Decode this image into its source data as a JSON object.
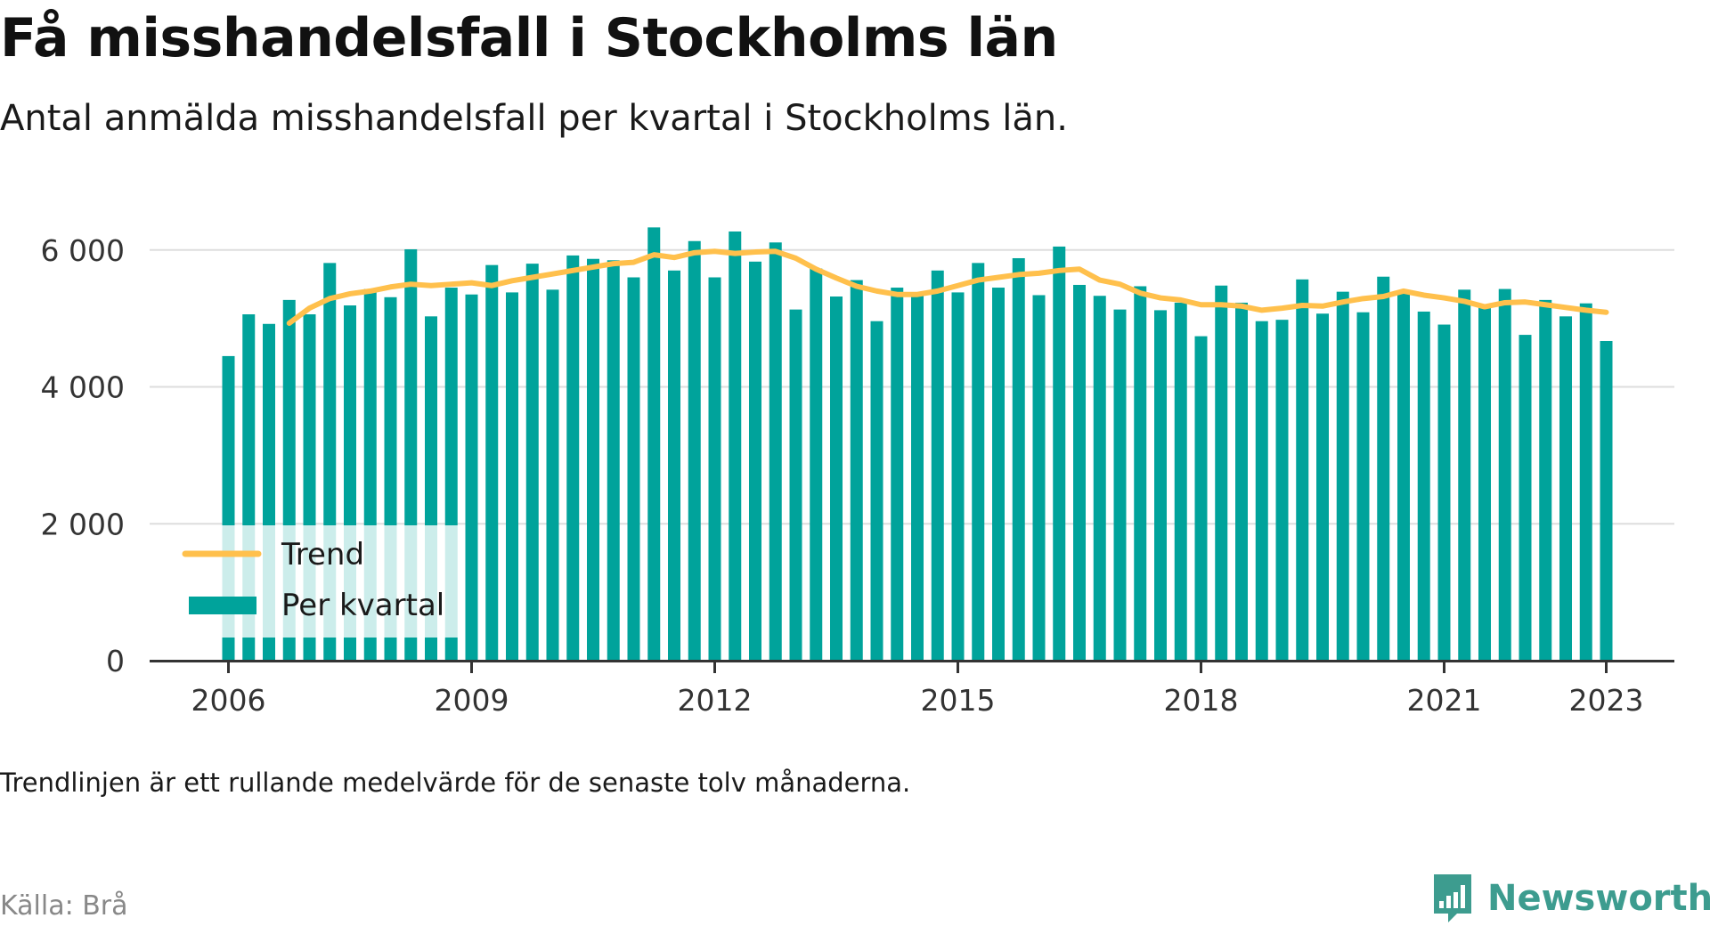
{
  "header": {
    "title": "Få misshandelsfall i Stockholms län",
    "subtitle": "Antal anmälda misshandelsfall per kvartal i Stockholms län."
  },
  "footer": {
    "note": "Trendlinjen är ett rullande medelvärde för de senaste tolv månaderna.",
    "source": "Källa: Brå",
    "brand": "Newsworthy"
  },
  "colors": {
    "bar": "#00a39b",
    "trend": "#ffc04c",
    "grid": "#dddddd",
    "axis": "#333333",
    "brand": "#3d9c8f"
  },
  "chart_data": {
    "type": "bar",
    "x_start": "2006 Q1",
    "x_interval": "quarter",
    "x_ticks": [
      "2006",
      "2009",
      "2012",
      "2015",
      "2018",
      "2021",
      "2023"
    ],
    "y_ticks": [
      "0",
      "2 000",
      "4 000",
      "6 000"
    ],
    "ylim": [
      0,
      6400
    ],
    "grid": true,
    "legend_position": "bottom-left",
    "series": [
      {
        "name": "Per kvartal",
        "type": "bar",
        "values": [
          4450,
          5060,
          4920,
          5270,
          5060,
          5810,
          5190,
          5430,
          5310,
          6010,
          5030,
          5450,
          5350,
          5780,
          5380,
          5800,
          5420,
          5920,
          5870,
          5850,
          5600,
          6330,
          5700,
          6130,
          5600,
          6270,
          5830,
          6110,
          5130,
          5730,
          5320,
          5560,
          4960,
          5450,
          5350,
          5700,
          5380,
          5810,
          5450,
          5880,
          5340,
          6050,
          5490,
          5330,
          5130,
          5470,
          5120,
          5230,
          4740,
          5480,
          5230,
          4960,
          4980,
          5570,
          5070,
          5390,
          5090,
          5610,
          5360,
          5100,
          4910,
          5420,
          5190,
          5430,
          4760,
          5270,
          5030,
          5220,
          4670
        ]
      },
      {
        "name": "Trend",
        "type": "line",
        "values": [
          null,
          null,
          null,
          4930,
          5150,
          5290,
          5360,
          5400,
          5460,
          5500,
          5480,
          5500,
          5520,
          5480,
          5550,
          5600,
          5650,
          5700,
          5750,
          5800,
          5820,
          5930,
          5890,
          5960,
          5980,
          5950,
          5970,
          5980,
          5880,
          5720,
          5590,
          5470,
          5400,
          5350,
          5350,
          5400,
          5480,
          5560,
          5600,
          5640,
          5660,
          5700,
          5720,
          5560,
          5500,
          5370,
          5300,
          5270,
          5200,
          5200,
          5180,
          5120,
          5150,
          5190,
          5180,
          5240,
          5290,
          5320,
          5400,
          5340,
          5300,
          5250,
          5170,
          5230,
          5240,
          5200,
          5160,
          5120,
          5090
        ]
      }
    ]
  }
}
